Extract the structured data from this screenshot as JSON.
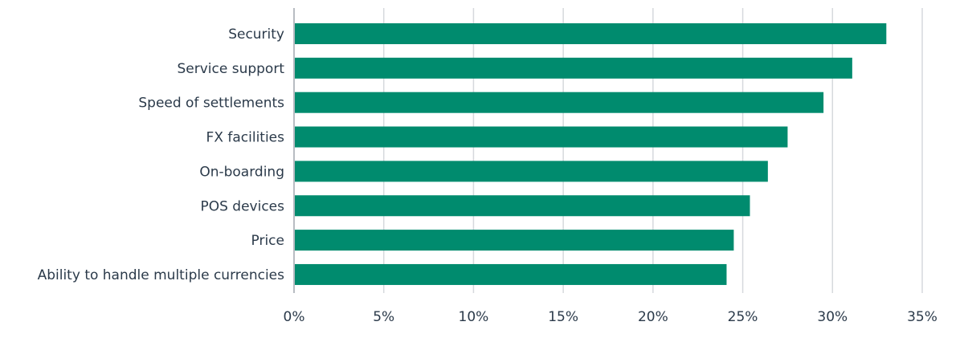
{
  "chart_data": {
    "type": "bar",
    "orientation": "horizontal",
    "categories": [
      "Security",
      "Service support",
      "Speed of settlements",
      "FX facilities",
      "On-boarding",
      "POS devices",
      "Price",
      "Ability to handle multiple currencies"
    ],
    "values": [
      33.0,
      31.1,
      29.5,
      27.5,
      26.4,
      25.4,
      24.5,
      24.1
    ],
    "xlim": [
      0,
      35
    ],
    "xticks": [
      0,
      5,
      10,
      15,
      20,
      25,
      30,
      35
    ],
    "xtick_labels": [
      "0%",
      "5%",
      "10%",
      "15%",
      "20%",
      "25%",
      "30%",
      "35%"
    ],
    "grid": true,
    "legend": "none",
    "bar_color": "#008b6e",
    "text_color": "#2b3a4a",
    "grid_color": "#d6d9dd"
  }
}
